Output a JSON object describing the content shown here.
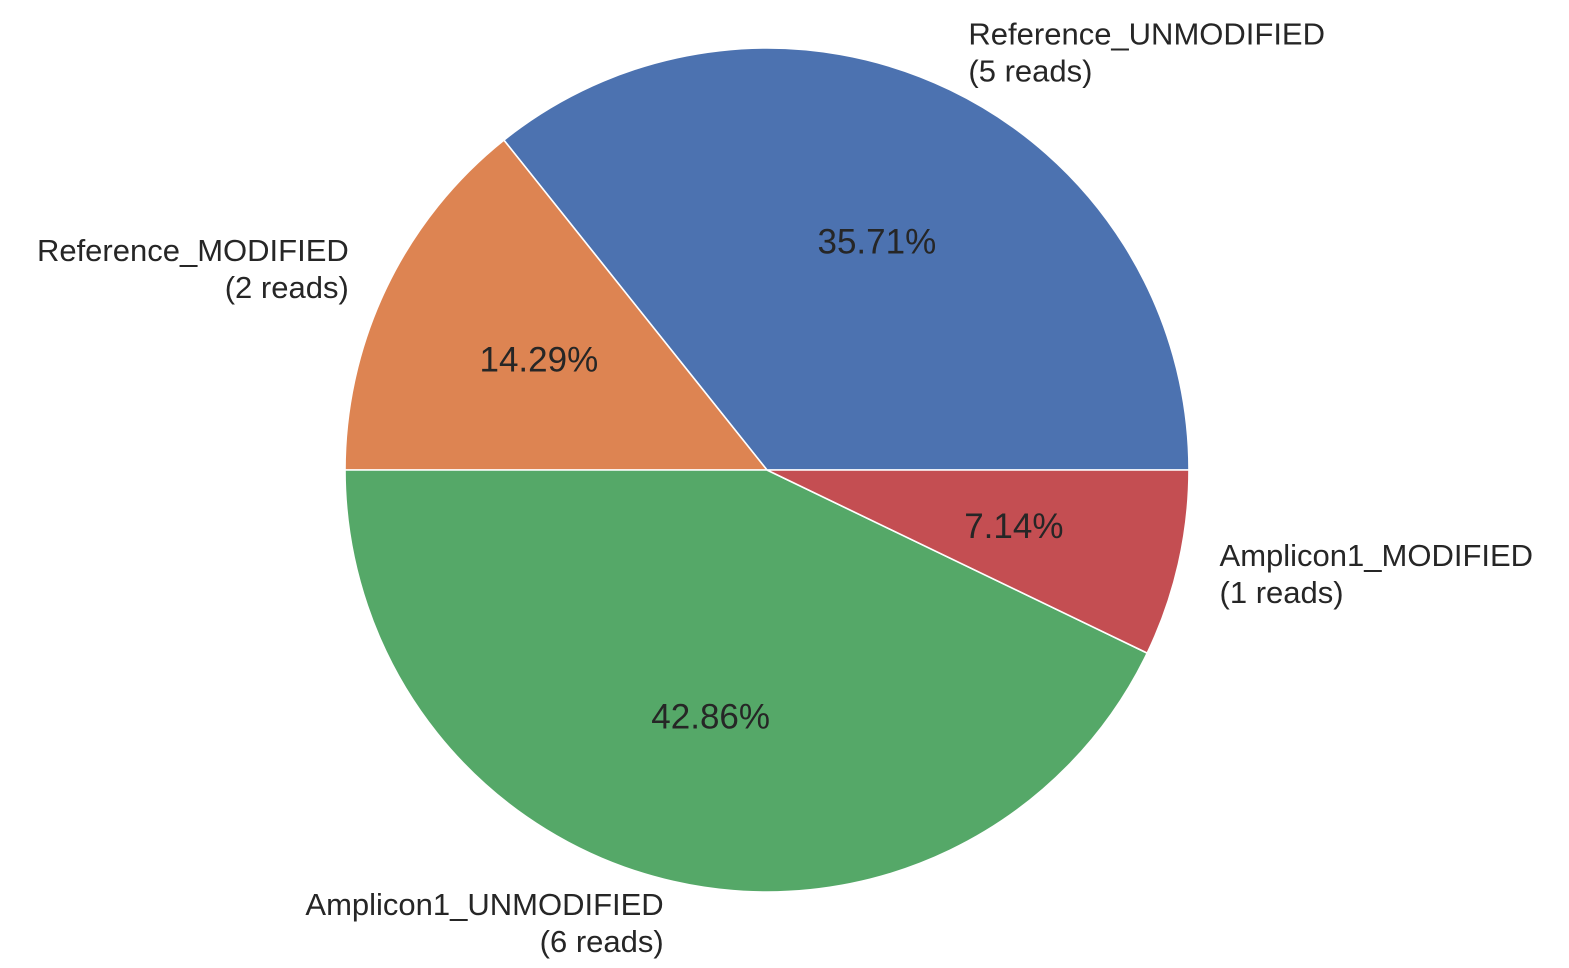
{
  "chart_data": {
    "type": "pie",
    "title": "",
    "categories": [
      "Reference_UNMODIFIED",
      "Reference_MODIFIED",
      "Amplicon1_UNMODIFIED",
      "Amplicon1_MODIFIED"
    ],
    "values": [
      5,
      2,
      6,
      1
    ],
    "unit": "reads",
    "labels": [
      {
        "name": "Reference_UNMODIFIED",
        "count_text": "(5 reads)",
        "percent_text": "35.71%"
      },
      {
        "name": "Reference_MODIFIED",
        "count_text": "(2 reads)",
        "percent_text": "14.29%"
      },
      {
        "name": "Amplicon1_UNMODIFIED",
        "count_text": "(6 reads)",
        "percent_text": "42.86%"
      },
      {
        "name": "Amplicon1_MODIFIED",
        "count_text": "(1 reads)",
        "percent_text": "7.14%"
      }
    ],
    "colors": [
      "#4c72b0",
      "#dd8452",
      "#55a868",
      "#c44e52"
    ],
    "start_angle_deg": 0,
    "direction": "counterclockwise",
    "legend": "none"
  }
}
